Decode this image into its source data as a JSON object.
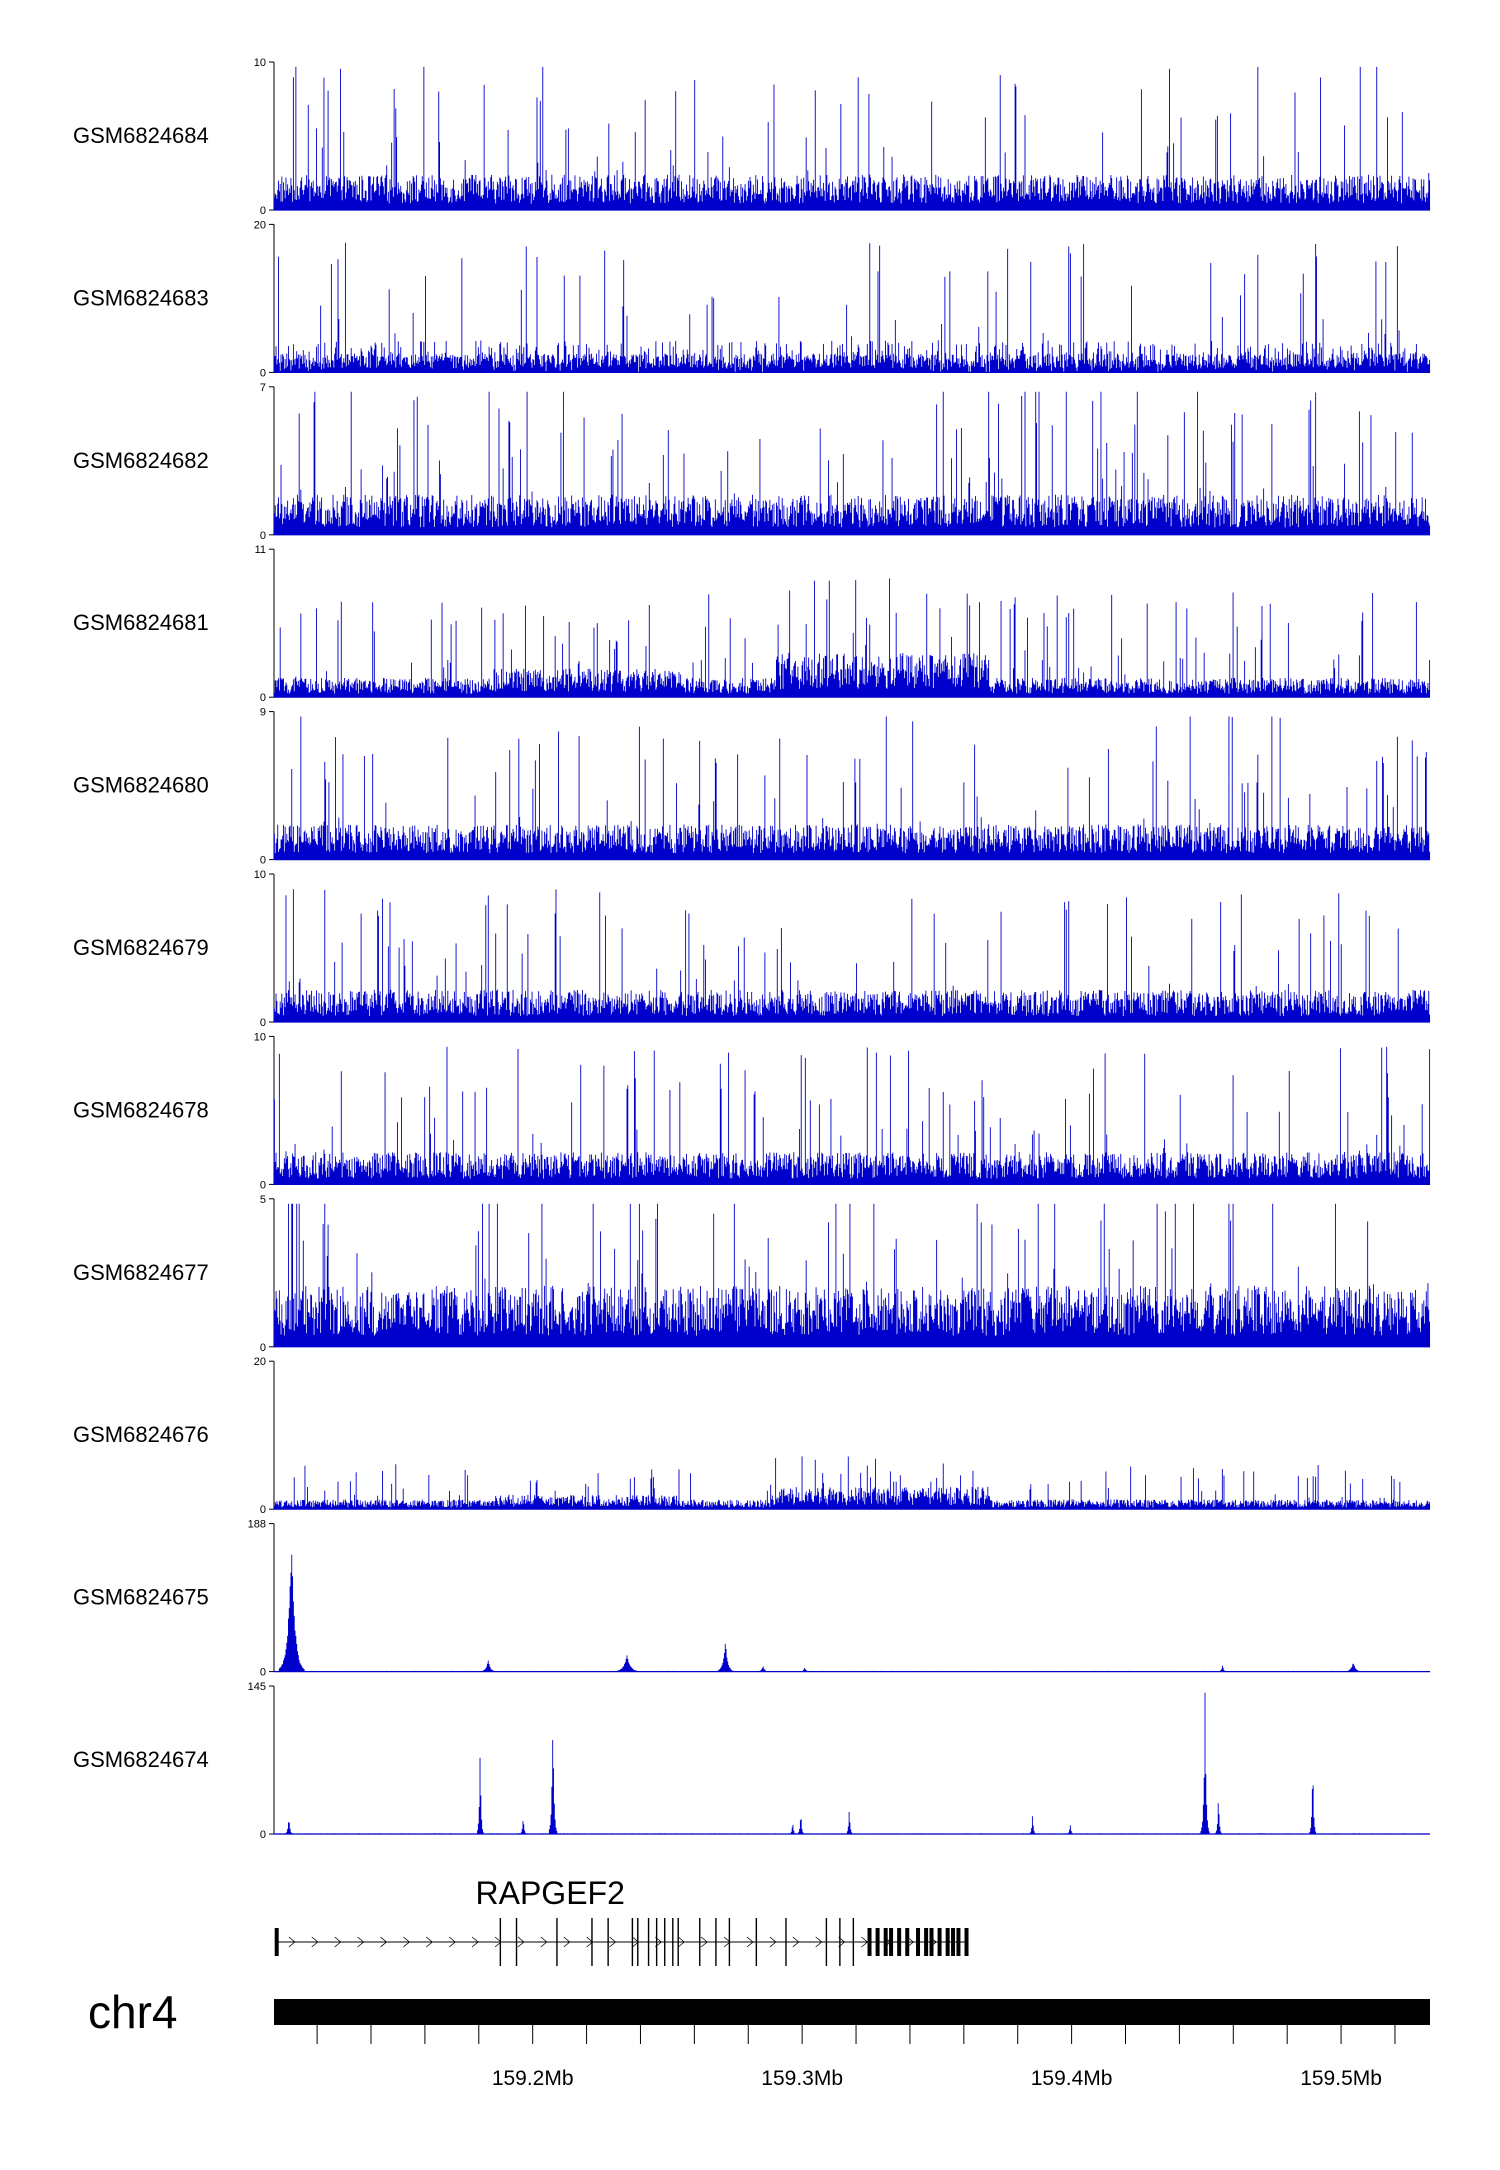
{
  "chart_data": {
    "type": "area",
    "tracks": [
      {
        "name": "GSM6824684",
        "ymax": 10,
        "ymin": 0,
        "profile": "uniform",
        "typ": 0.22,
        "spike": 0.8
      },
      {
        "name": "GSM6824683",
        "ymax": 20,
        "ymin": 0,
        "profile": "sparse",
        "typ": 0.1,
        "spike": 0.75
      },
      {
        "name": "GSM6824682",
        "ymax": 7,
        "ymin": 0,
        "profile": "uniform",
        "typ": 0.25,
        "spike": 0.85
      },
      {
        "name": "GSM6824681",
        "ymax": 11,
        "ymin": 0,
        "profile": "broad",
        "typ": 0.12,
        "spike": 0.6
      },
      {
        "name": "GSM6824680",
        "ymax": 9,
        "ymin": 0,
        "profile": "uniform",
        "typ": 0.22,
        "spike": 0.8
      },
      {
        "name": "GSM6824679",
        "ymax": 10,
        "ymin": 0,
        "profile": "uniform",
        "typ": 0.2,
        "spike": 0.75
      },
      {
        "name": "GSM6824678",
        "ymax": 10,
        "ymin": 0,
        "profile": "uniform",
        "typ": 0.2,
        "spike": 0.75
      },
      {
        "name": "GSM6824677",
        "ymax": 5,
        "ymin": 0,
        "profile": "uniform",
        "typ": 0.38,
        "spike": 0.85
      },
      {
        "name": "GSM6824676",
        "ymax": 20,
        "ymin": 0,
        "profile": "broad-low",
        "typ": 0.06,
        "spike": 0.25
      },
      {
        "name": "GSM6824675",
        "ymax": 188,
        "ymin": 0,
        "profile": "peaks",
        "typ": 0.005,
        "spike": 0.01,
        "peaks": [
          [
            159.1105,
            0.95,
            0.0012
          ],
          [
            159.1835,
            0.08,
            0.0008
          ],
          [
            159.235,
            0.12,
            0.0012
          ],
          [
            159.2715,
            0.22,
            0.0008
          ],
          [
            159.2855,
            0.04,
            0.0006
          ],
          [
            159.301,
            0.03,
            0.0005
          ],
          [
            159.456,
            0.05,
            0.0004
          ],
          [
            159.5045,
            0.07,
            0.0008
          ]
        ]
      },
      {
        "name": "GSM6824674",
        "ymax": 145,
        "ymin": 0,
        "profile": "peaks",
        "typ": 0.005,
        "spike": 0.01,
        "peaks": [
          [
            159.1095,
            0.12,
            0.0004
          ],
          [
            159.1805,
            0.67,
            0.0003
          ],
          [
            159.1965,
            0.14,
            0.0003
          ],
          [
            159.2075,
            0.86,
            0.0004
          ],
          [
            159.2965,
            0.09,
            0.0003
          ],
          [
            159.2995,
            0.18,
            0.0003
          ],
          [
            159.3175,
            0.2,
            0.0003
          ],
          [
            159.3855,
            0.15,
            0.0003
          ],
          [
            159.3995,
            0.08,
            0.0003
          ],
          [
            159.4495,
            0.98,
            0.0004
          ],
          [
            159.4545,
            0.3,
            0.0003
          ],
          [
            159.4895,
            0.58,
            0.0003
          ]
        ]
      }
    ],
    "x_range_mb": [
      159.104,
      159.533
    ],
    "x_ticks_mb": [
      159.12,
      159.14,
      159.16,
      159.18,
      159.2,
      159.22,
      159.24,
      159.26,
      159.28,
      159.3,
      159.32,
      159.34,
      159.36,
      159.38,
      159.4,
      159.42,
      159.44,
      159.46,
      159.48,
      159.5,
      159.52
    ],
    "x_tick_labels": [
      {
        "mb": 159.2,
        "label": "159.2Mb"
      },
      {
        "mb": 159.3,
        "label": "159.3Mb"
      },
      {
        "mb": 159.4,
        "label": "159.4Mb"
      },
      {
        "mb": 159.5,
        "label": "159.5Mb"
      }
    ],
    "gene": {
      "name": "RAPGEF2",
      "start_mb": 159.105,
      "end_mb": 159.361,
      "exons_mb": [
        159.105,
        159.188,
        159.194,
        159.209,
        159.222,
        159.228,
        159.237,
        159.239,
        159.243,
        159.246,
        159.249,
        159.252,
        159.254,
        159.262,
        159.268,
        159.273,
        159.283,
        159.294,
        159.309,
        159.314,
        159.319,
        159.325,
        159.328,
        159.331,
        159.333,
        159.336,
        159.339,
        159.343,
        159.346,
        159.348,
        159.351,
        159.354,
        159.356,
        159.358,
        159.361
      ]
    },
    "chromosome": "chr4",
    "series_color": "#0000cc"
  }
}
